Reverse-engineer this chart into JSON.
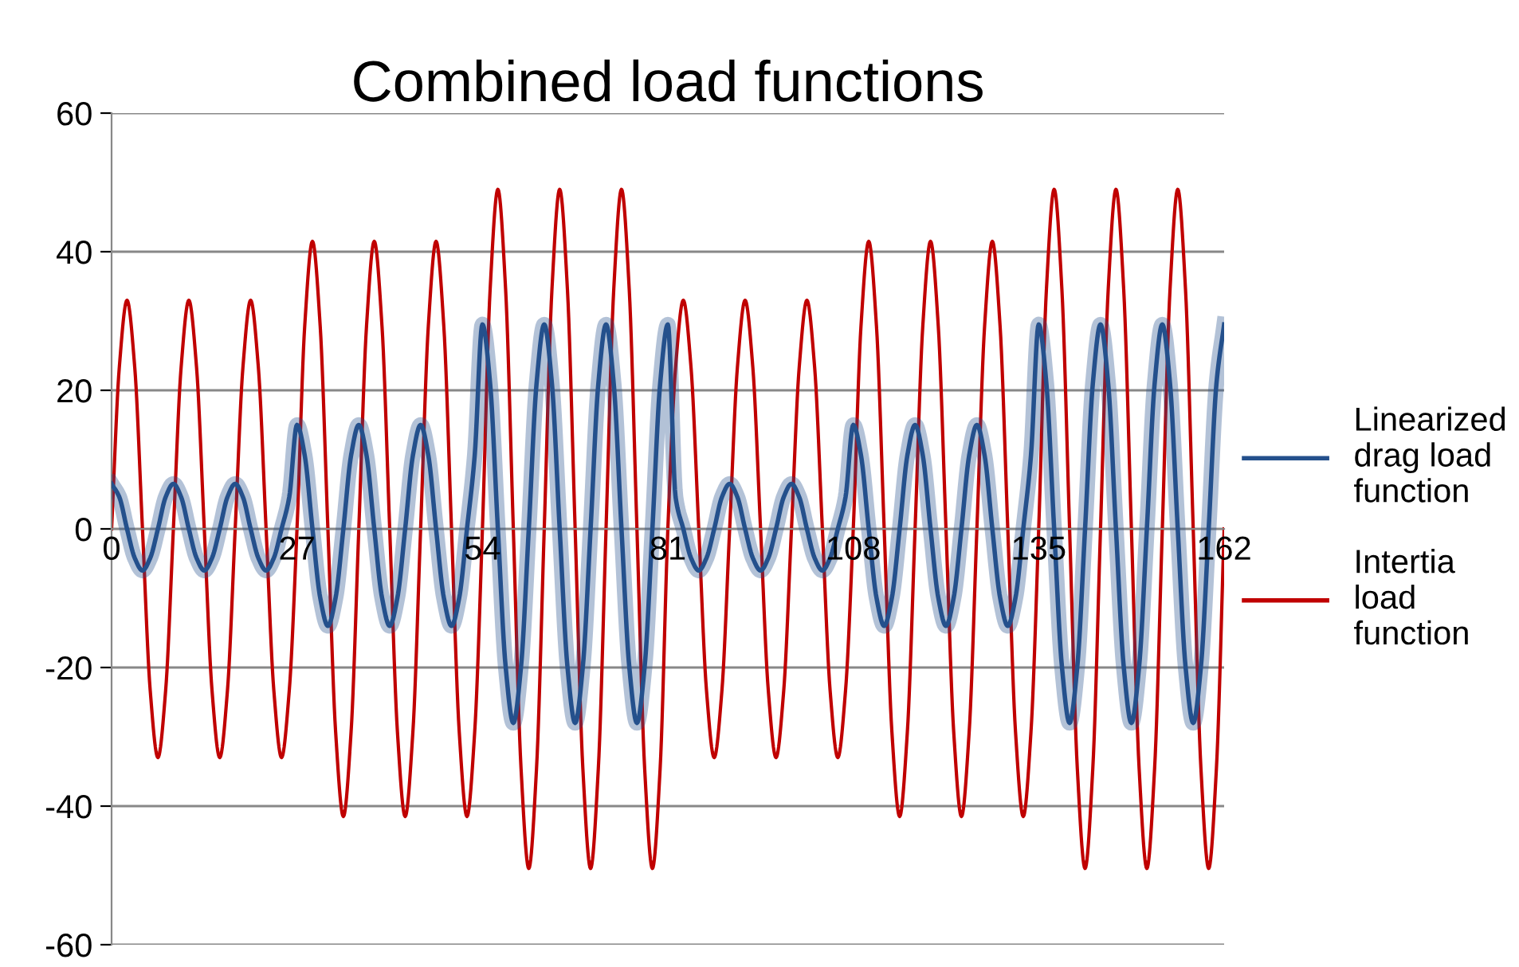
{
  "chart_data": {
    "type": "line",
    "title": "Combined load functions",
    "x": [
      0,
      1.125,
      2.25,
      3.375,
      4.5,
      5.625,
      6.75,
      7.875,
      9,
      10.125,
      11.25,
      12.375,
      13.5,
      14.625,
      15.75,
      16.875,
      18,
      19.125,
      20.25,
      21.375,
      22.5,
      23.625,
      24.75,
      25.875,
      27,
      28.125,
      29.25,
      30.375,
      31.5,
      32.625,
      33.75,
      34.875,
      36,
      37.125,
      38.25,
      39.375,
      40.5,
      41.625,
      42.75,
      43.875,
      45,
      46.125,
      47.25,
      48.375,
      49.5,
      50.625,
      51.75,
      52.875,
      54,
      55.125,
      56.25,
      57.375,
      58.5,
      59.625,
      60.75,
      61.875,
      63,
      64.125,
      65.25,
      66.375,
      67.5,
      68.625,
      69.75,
      70.875,
      72,
      73.125,
      74.25,
      75.375,
      76.5,
      77.625,
      78.75,
      79.875,
      81,
      82.125,
      83.25,
      84.375,
      85.5,
      86.625,
      87.75,
      88.875,
      90,
      91.125,
      92.25,
      93.375,
      94.5,
      95.625,
      96.75,
      97.875,
      99,
      100.125,
      101.25,
      102.375,
      103.5,
      104.625,
      105.75,
      106.875,
      108,
      109.125,
      110.25,
      111.375,
      112.5,
      113.625,
      114.75,
      115.875,
      117,
      118.125,
      119.25,
      120.375,
      121.5,
      122.625,
      123.75,
      124.875,
      126,
      127.125,
      128.25,
      129.375,
      130.5,
      131.625,
      132.75,
      133.875,
      135,
      136.125,
      137.25,
      138.375,
      139.5,
      140.625,
      141.75,
      142.875,
      144,
      145.125,
      146.25,
      147.375,
      148.5,
      149.625,
      150.75,
      151.875,
      153,
      154.125,
      155.25,
      156.375,
      157.5,
      158.625,
      159.75,
      160.875,
      162
    ],
    "series": [
      {
        "name": "Linearized\ndrag load\nfunction",
        "color": "#24508c",
        "values": [
          6.5,
          4.6,
          0,
          -4.2,
          -6,
          -4.2,
          0,
          4.6,
          6.5,
          4.6,
          0,
          -4.2,
          -6,
          -4.2,
          0,
          4.6,
          6.5,
          4.6,
          0,
          -4.2,
          -6,
          -4.2,
          0,
          4.6,
          15,
          10.6,
          0,
          -9.9,
          -14,
          -9.9,
          0,
          10.6,
          15,
          10.6,
          0,
          -9.9,
          -14,
          -9.9,
          0,
          10.6,
          15,
          10.6,
          0,
          -9.9,
          -14,
          -9.9,
          0,
          10.6,
          29.5,
          20.9,
          0,
          -19.8,
          -28,
          -19.8,
          0,
          20.9,
          29.5,
          20.9,
          0,
          -19.8,
          -28,
          -19.8,
          0,
          20.9,
          29.5,
          20.9,
          0,
          -19.8,
          -28,
          -19.8,
          0,
          20.9,
          29.5,
          4.6,
          0,
          -4.2,
          -6,
          -4.2,
          0,
          4.6,
          6.5,
          4.6,
          0,
          -4.2,
          -6,
          -4.2,
          0,
          4.6,
          6.5,
          4.6,
          0,
          -4.2,
          -6,
          -4.2,
          0,
          4.6,
          15,
          10.6,
          0,
          -9.9,
          -14,
          -9.9,
          0,
          10.6,
          15,
          10.6,
          0,
          -9.9,
          -14,
          -9.9,
          0,
          10.6,
          15,
          10.6,
          0,
          -9.9,
          -14,
          -9.9,
          0,
          10.6,
          29.5,
          20.9,
          0,
          -19.8,
          -28,
          -19.8,
          0,
          20.9,
          29.5,
          20.9,
          0,
          -19.8,
          -28,
          -19.8,
          0,
          20.9,
          29.5,
          20.9,
          0,
          -19.8,
          -28,
          -19.8,
          0,
          20.9,
          29.5
        ]
      },
      {
        "name": "Intertia\nload\nfunction",
        "color": "#c00000",
        "values": [
          0,
          23.3,
          33,
          23.3,
          0,
          -23.3,
          -33,
          -23.3,
          0,
          23.3,
          33,
          23.3,
          0,
          -23.3,
          -33,
          -23.3,
          0,
          23.3,
          33,
          23.3,
          0,
          -23.3,
          -33,
          -23.3,
          0,
          29.3,
          41.5,
          29.3,
          0,
          -29.3,
          -41.5,
          -29.3,
          0,
          29.3,
          41.5,
          29.3,
          0,
          -29.3,
          -41.5,
          -29.3,
          0,
          29.3,
          41.5,
          29.3,
          0,
          -29.3,
          -41.5,
          -29.3,
          0,
          34.6,
          49,
          34.6,
          0,
          -34.6,
          -49,
          -34.6,
          0,
          34.6,
          49,
          34.6,
          0,
          -34.6,
          -49,
          -34.6,
          0,
          34.6,
          49,
          34.6,
          0,
          -34.6,
          -49,
          -34.6,
          0,
          23.3,
          33,
          23.3,
          0,
          -23.3,
          -33,
          -23.3,
          0,
          23.3,
          33,
          23.3,
          0,
          -23.3,
          -33,
          -23.3,
          0,
          23.3,
          33,
          23.3,
          0,
          -23.3,
          -33,
          -23.3,
          0,
          29.3,
          41.5,
          29.3,
          0,
          -29.3,
          -41.5,
          -29.3,
          0,
          29.3,
          41.5,
          29.3,
          0,
          -29.3,
          -41.5,
          -29.3,
          0,
          29.3,
          41.5,
          29.3,
          0,
          -29.3,
          -41.5,
          -29.3,
          0,
          34.6,
          49,
          34.6,
          0,
          -34.6,
          -49,
          -34.6,
          0,
          34.6,
          49,
          34.6,
          0,
          -34.6,
          -49,
          -34.6,
          0,
          34.6,
          49,
          34.6,
          0,
          -34.6,
          -49,
          -34.6,
          0
        ]
      }
    ],
    "xlim": [
      0,
      162
    ],
    "xticks": [
      0,
      27,
      54,
      81,
      108,
      135,
      162
    ],
    "ylim": [
      -60,
      60
    ],
    "yticks": [
      -60,
      -40,
      -20,
      0,
      20,
      40,
      60
    ],
    "grid": "y",
    "legend": "right",
    "marker": "none",
    "line_style": "solid"
  }
}
